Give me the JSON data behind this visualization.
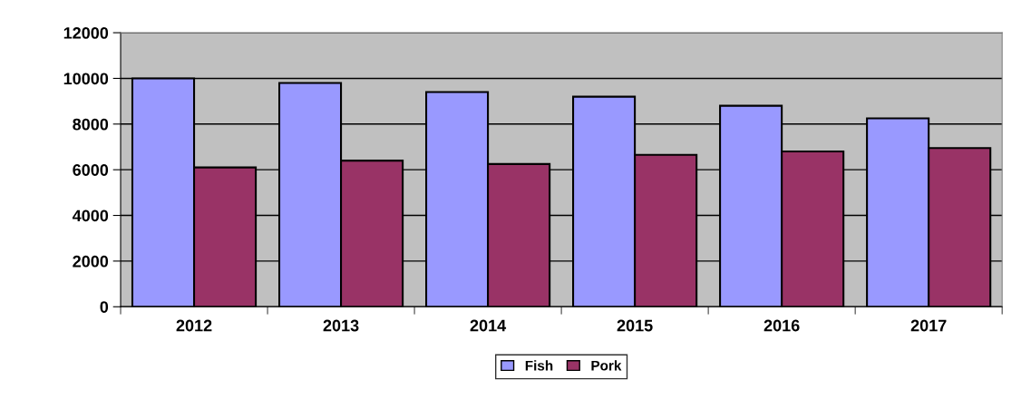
{
  "chart_data": {
    "type": "bar",
    "categories": [
      "2012",
      "2013",
      "2014",
      "2015",
      "2016",
      "2017"
    ],
    "series": [
      {
        "name": "Fish",
        "color": "#9999ff",
        "values": [
          10000,
          9800,
          9400,
          9200,
          8800,
          8250
        ]
      },
      {
        "name": "Pork",
        "color": "#993366",
        "values": [
          6100,
          6400,
          6250,
          6650,
          6800,
          6950
        ]
      }
    ],
    "ylim": [
      0,
      12000
    ],
    "yticks": [
      0,
      2000,
      4000,
      6000,
      8000,
      10000,
      12000
    ],
    "grid": "y",
    "legend": "bottom"
  }
}
